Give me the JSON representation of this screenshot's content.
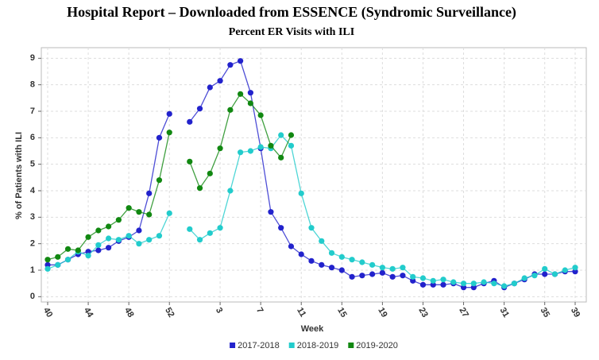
{
  "chart_data": {
    "type": "line",
    "title": "Hospital Report – Downloaded from ESSENCE (Syndromic Surveillance)",
    "subtitle": "Percent ER Visits with ILI",
    "x_label": "Week",
    "y_label": "% of Patients with ILI",
    "categories": [
      "40",
      null,
      null,
      null,
      "44",
      null,
      null,
      null,
      "48",
      null,
      null,
      null,
      "52",
      null,
      null,
      null,
      null,
      "3",
      null,
      null,
      null,
      "7",
      null,
      null,
      null,
      "11",
      null,
      null,
      null,
      "15",
      null,
      null,
      null,
      "19",
      null,
      null,
      null,
      "23",
      null,
      null,
      null,
      "27",
      null,
      null,
      null,
      "31",
      null,
      null,
      null,
      "35",
      null,
      null,
      "39"
    ],
    "series": [
      {
        "name": "2017-2018",
        "color": "#2222cc",
        "values": [
          1.2,
          1.2,
          1.4,
          1.6,
          1.7,
          1.75,
          1.85,
          2.1,
          2.25,
          2.5,
          3.9,
          6.0,
          6.9,
          null,
          6.6,
          7.1,
          7.9,
          8.15,
          8.75,
          8.9,
          7.7,
          5.6,
          3.2,
          2.6,
          1.9,
          1.6,
          1.35,
          1.2,
          1.1,
          1.0,
          0.75,
          0.8,
          0.85,
          0.9,
          0.75,
          0.8,
          0.6,
          0.45,
          0.45,
          0.45,
          0.5,
          0.35,
          0.35,
          0.5,
          0.6,
          0.35,
          0.5,
          0.65,
          0.85,
          0.85,
          0.85,
          0.95,
          0.95
        ]
      },
      {
        "name": "2018-2019",
        "color": "#22cccc",
        "values": [
          1.05,
          1.2,
          1.4,
          1.7,
          1.55,
          1.95,
          2.2,
          2.15,
          2.3,
          2.0,
          2.15,
          2.3,
          3.15,
          null,
          2.55,
          2.15,
          2.4,
          2.6,
          4.0,
          5.45,
          5.5,
          5.65,
          5.6,
          6.1,
          5.7,
          3.9,
          2.6,
          2.1,
          1.65,
          1.5,
          1.4,
          1.3,
          1.2,
          1.1,
          1.05,
          1.1,
          0.75,
          0.7,
          0.6,
          0.65,
          0.55,
          0.5,
          0.5,
          0.55,
          0.5,
          0.4,
          0.5,
          0.7,
          0.8,
          1.05,
          0.85,
          1.0,
          1.1
        ]
      },
      {
        "name": "2019-2020",
        "color": "#118811",
        "values": [
          1.4,
          1.5,
          1.8,
          1.75,
          2.25,
          2.5,
          2.65,
          2.9,
          3.35,
          3.2,
          3.1,
          4.4,
          6.2,
          null,
          5.1,
          4.1,
          4.65,
          5.6,
          7.05,
          7.65,
          7.3,
          6.85,
          5.7,
          5.25,
          6.1,
          null,
          null,
          null,
          null,
          null,
          null,
          null,
          null,
          null,
          null,
          null,
          null,
          null,
          null,
          null,
          null,
          null,
          null,
          null,
          null,
          null,
          null,
          null,
          null,
          null,
          null,
          null,
          null
        ]
      }
    ],
    "ylim": [
      -0.2,
      9.4
    ],
    "yticks": [
      0,
      1,
      2,
      3,
      4,
      5,
      6,
      7,
      8,
      9
    ],
    "grid": true,
    "legend": "bottom"
  }
}
